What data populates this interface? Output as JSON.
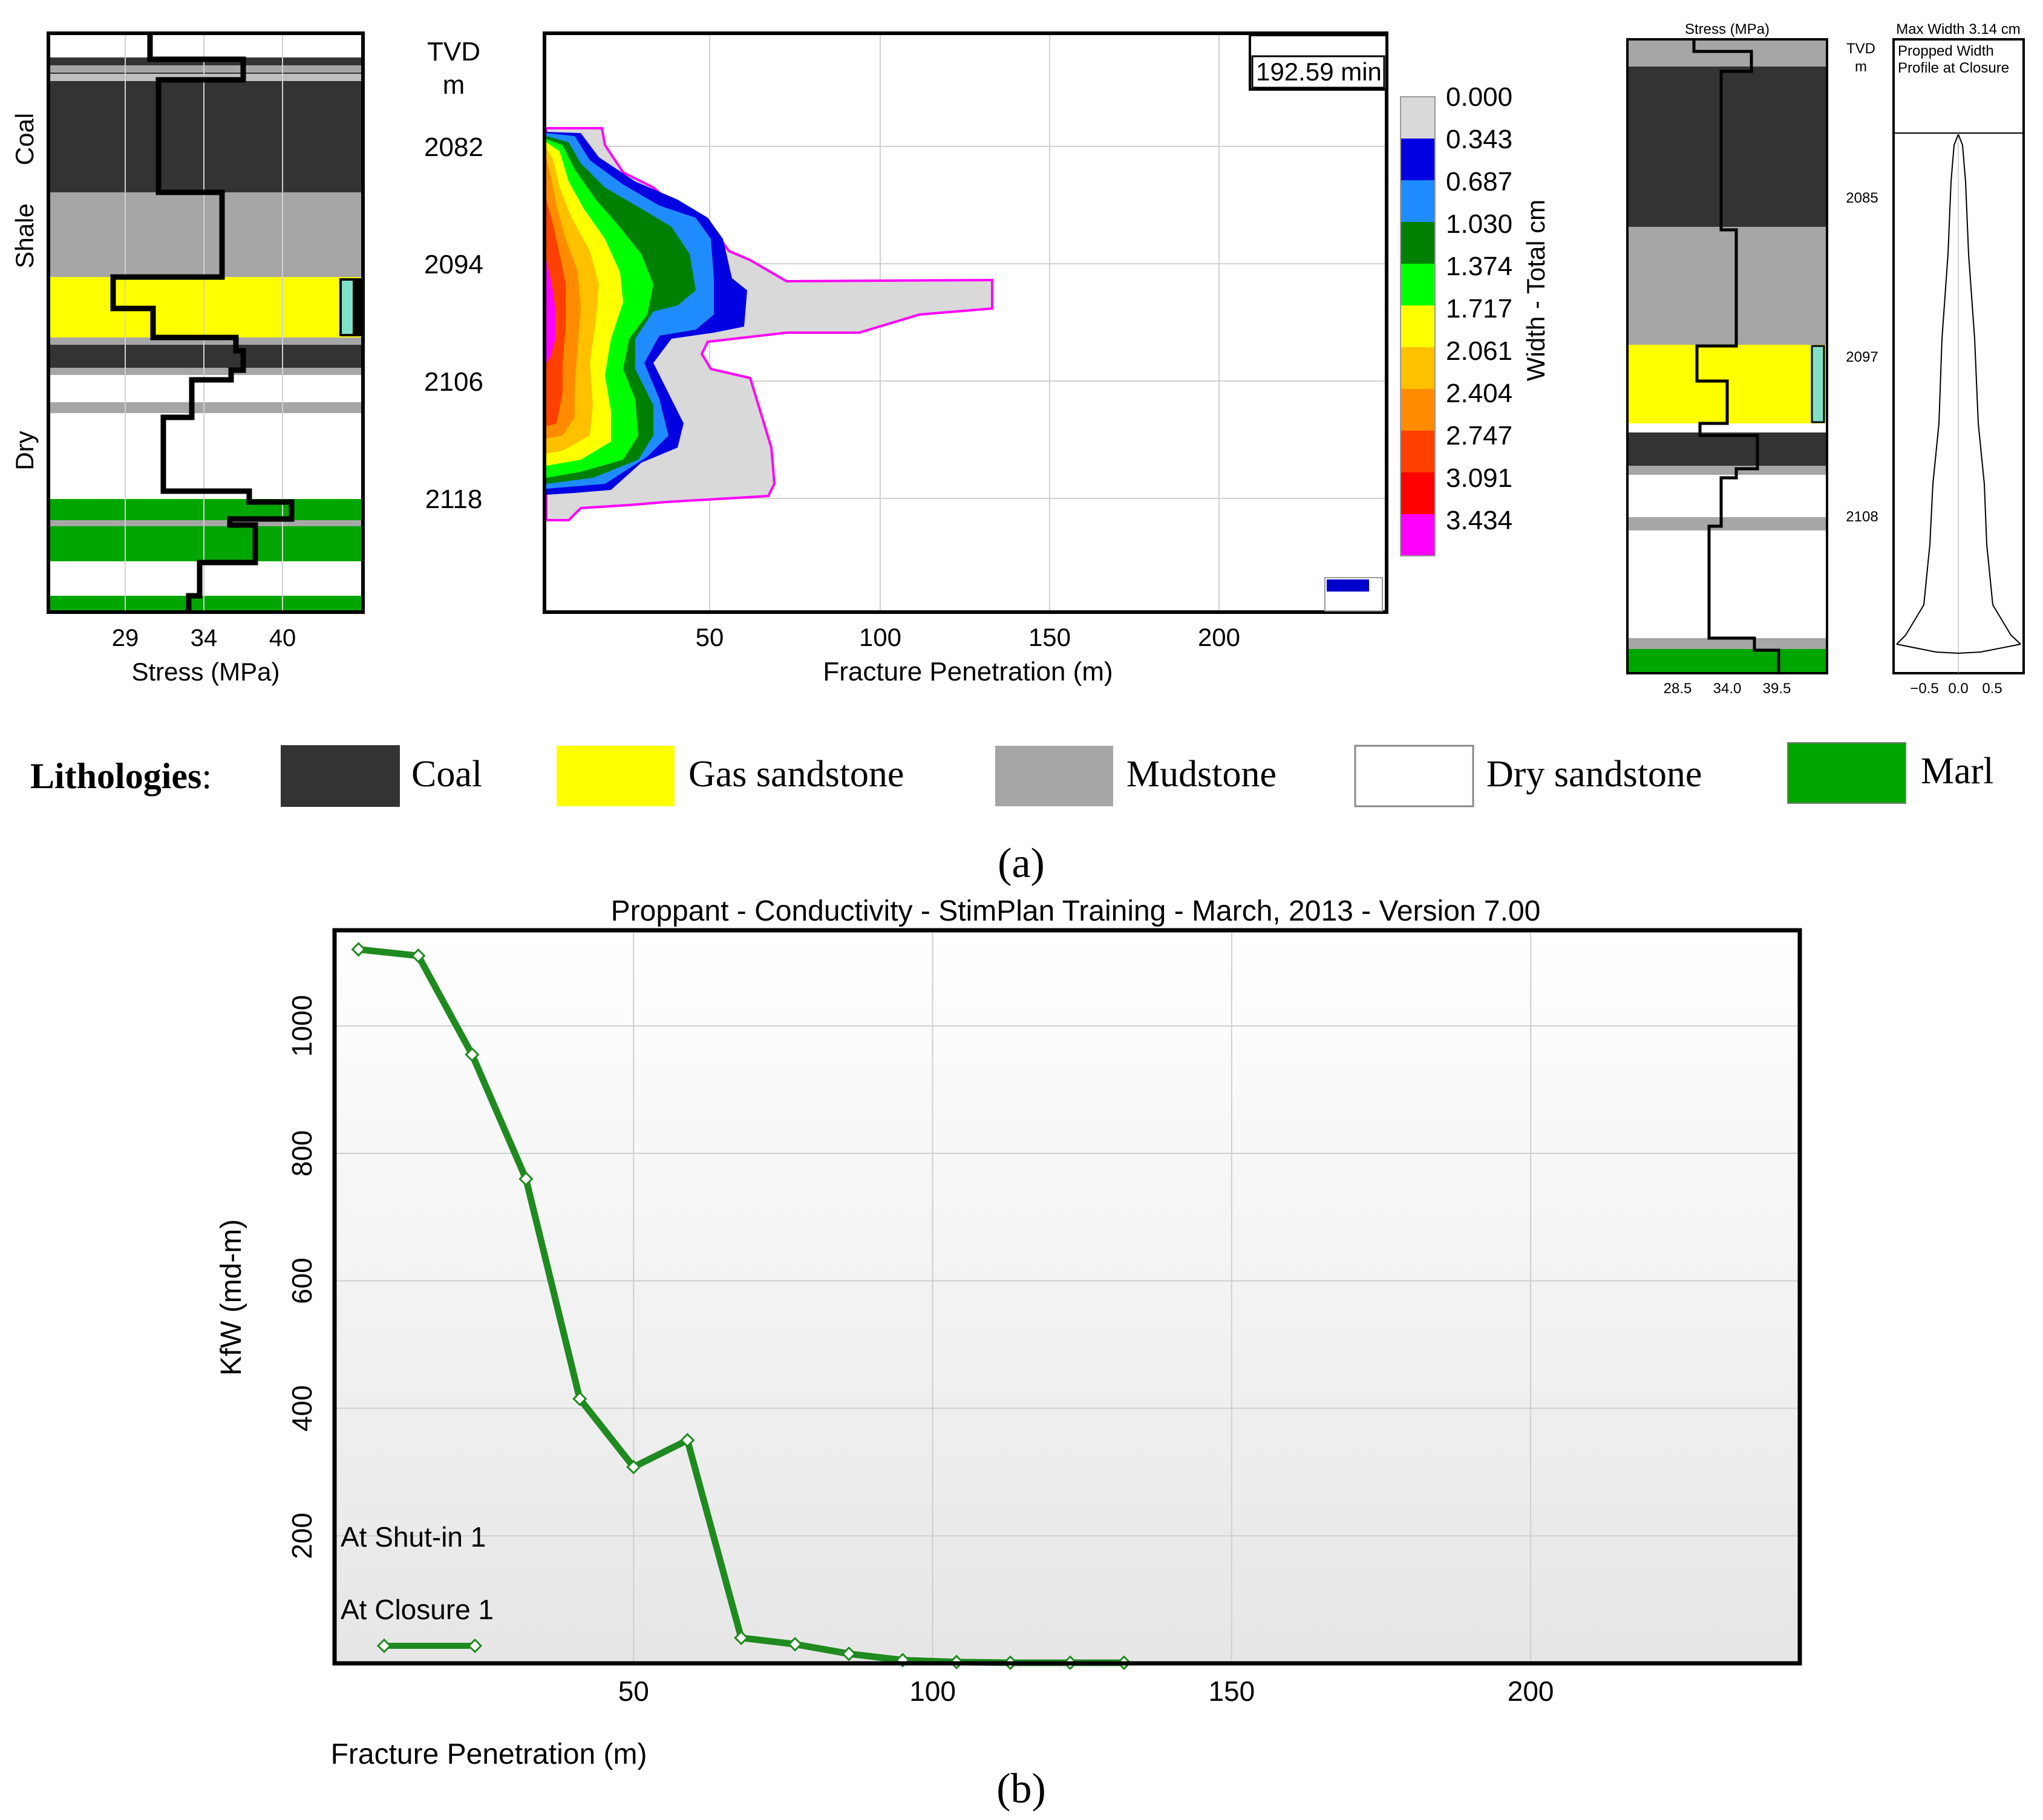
{
  "panel_a": {
    "caption": "(a)",
    "left_log": {
      "x_label": "Stress (MPa)",
      "x_ticks": [
        "29",
        "34",
        "40"
      ],
      "zone_labels": [
        "Coal",
        "Shale",
        "Dry"
      ]
    },
    "tvd": {
      "title_line1": "TVD",
      "title_line2": "m",
      "depths": [
        "2082",
        "2094",
        "2106",
        "2118"
      ]
    },
    "fracture_plot": {
      "time_label": "192.59 min",
      "x_label": "Fracture Penetration (m)",
      "x_ticks": [
        "50",
        "100",
        "150",
        "200"
      ],
      "colorbar_title": "Width - Total cm",
      "colorbar_values": [
        "0.000",
        "0.343",
        "0.687",
        "1.030",
        "1.374",
        "1.717",
        "2.061",
        "2.404",
        "2.747",
        "3.091",
        "3.434"
      ],
      "colorbar_colors": [
        "#d9d9d9",
        "#0000e0",
        "#1e8cff",
        "#008000",
        "#00ff00",
        "#ffff00",
        "#ffc000",
        "#ff8c00",
        "#ff4000",
        "#ff0000",
        "#ff00ff"
      ]
    },
    "right_log": {
      "stress_header": "Stress (MPa)",
      "tvd_line1": "TVD",
      "tvd_line2": "m",
      "depths": [
        "2085",
        "2097",
        "2108"
      ],
      "x_ticks": [
        "28.5",
        "34.0",
        "39.5"
      ],
      "max_width_label": "Max Width 3.14 cm",
      "profile_line1": "Propped Width",
      "profile_line2": "Profile at Closure",
      "profile_ticks": [
        "−0.5",
        "0.0",
        "0.5"
      ]
    },
    "legend": {
      "title": "Lithologies",
      "colon": ":",
      "items": [
        {
          "label": "Coal",
          "color": "#333333"
        },
        {
          "label": "Gas sandstone",
          "color": "#ffff00"
        },
        {
          "label": "Mudstone",
          "color": "#a6a6a6"
        },
        {
          "label": "Dry sandstone",
          "color": "#ffffff"
        },
        {
          "label": "Marl",
          "color": "#00a600"
        }
      ]
    }
  },
  "panel_b": {
    "caption": "(b)",
    "chart_data": {
      "type": "line",
      "title": "Proppant - Conductivity - StimPlan Training - March, 2013 - Version 7.00",
      "xlabel": "Fracture Penetration (m)",
      "ylabel": "KfW (md-m)",
      "xlim": [
        0,
        245
      ],
      "ylim": [
        0,
        1150
      ],
      "x_ticks": [
        50,
        100,
        150,
        200
      ],
      "y_ticks": [
        200,
        400,
        600,
        800,
        1000
      ],
      "series": [
        {
          "name": "At Closure 1",
          "color": "#1f8a1f",
          "x": [
            4,
            14,
            23,
            32,
            41,
            50,
            59,
            68,
            77,
            86,
            95,
            104,
            113,
            123,
            132
          ],
          "y": [
            1120,
            1110,
            955,
            760,
            415,
            308,
            350,
            40,
            30,
            15,
            5,
            2,
            1,
            1,
            1
          ]
        }
      ],
      "legend": [
        "At Shut-in 1",
        "At Closure 1"
      ]
    }
  }
}
